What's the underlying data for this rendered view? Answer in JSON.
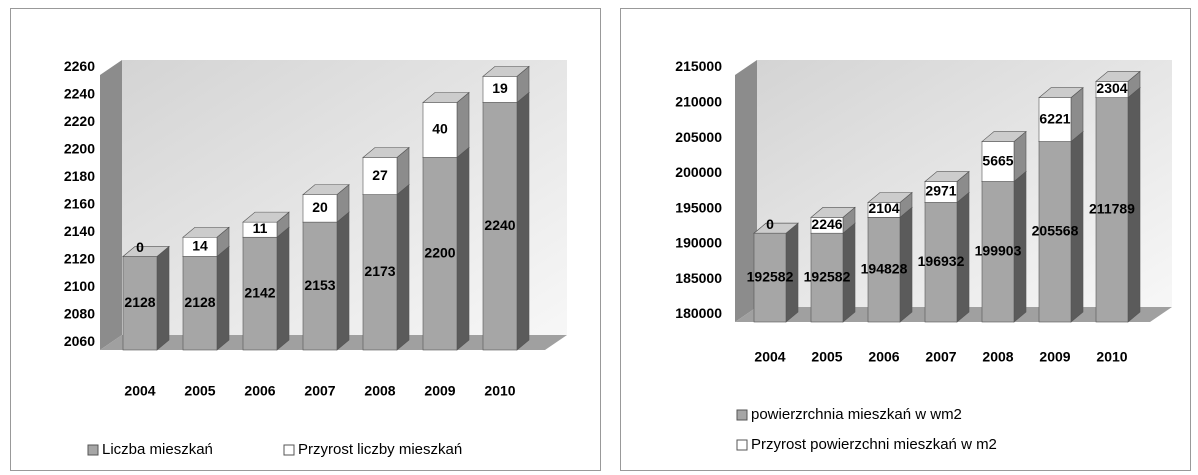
{
  "chart_data": [
    {
      "type": "bar3d_stacked",
      "categories": [
        "2004",
        "2005",
        "2006",
        "2007",
        "2008",
        "2009",
        "2010"
      ],
      "series": [
        {
          "name": "Liczba mieszkań",
          "color": "#a6a6a6",
          "values": [
            2128,
            2128,
            2142,
            2153,
            2173,
            2200,
            2240
          ]
        },
        {
          "name": "Przyrost liczby mieszkań",
          "color": "#ffffff",
          "values": [
            0,
            14,
            11,
            20,
            27,
            40,
            19
          ]
        }
      ],
      "ylim": [
        2060,
        2260
      ],
      "yticks": [
        2060,
        2080,
        2100,
        2120,
        2140,
        2160,
        2180,
        2200,
        2220,
        2240,
        2260
      ],
      "grid": false,
      "legend": "bottom"
    },
    {
      "type": "bar3d_stacked",
      "categories": [
        "2004",
        "2005",
        "2006",
        "2007",
        "2008",
        "2009",
        "2010"
      ],
      "series": [
        {
          "name": "powierzrchnia mieszkań w wm2",
          "color": "#a6a6a6",
          "values": [
            192582,
            192582,
            194828,
            196932,
            199903,
            205568,
            211789
          ]
        },
        {
          "name": "Przyrost powierzchni mieszkań w m2",
          "color": "#ffffff",
          "values": [
            0,
            2246,
            2104,
            2971,
            5665,
            6221,
            2304
          ]
        }
      ],
      "ylim": [
        180000,
        215000
      ],
      "yticks": [
        180000,
        185000,
        190000,
        195000,
        200000,
        205000,
        210000,
        215000
      ],
      "grid": false,
      "legend": "bottom"
    }
  ]
}
